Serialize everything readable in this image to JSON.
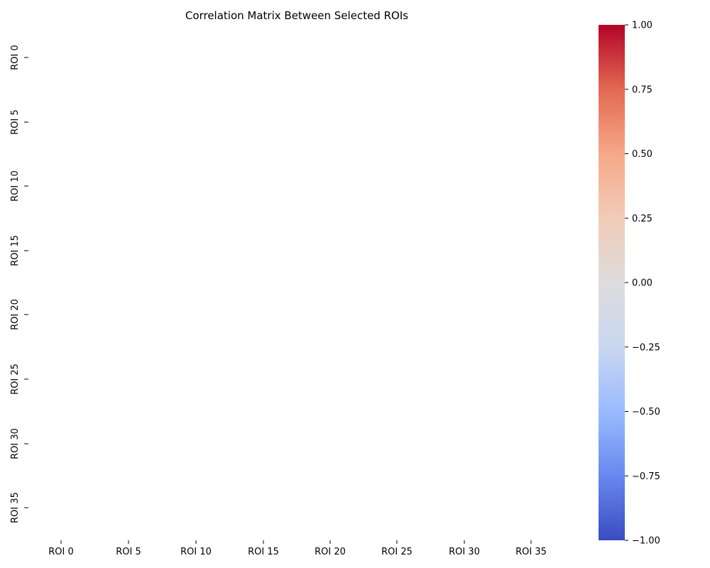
{
  "chart_data": {
    "type": "heatmap",
    "title": "Correlation Matrix Between Selected ROIs",
    "xlabel": "",
    "ylabel": "",
    "x_tick_labels": [
      "ROI 0",
      "ROI 5",
      "ROI 10",
      "ROI 15",
      "ROI 20",
      "ROI 25",
      "ROI 30",
      "ROI 35"
    ],
    "y_tick_labels": [
      "ROI 0",
      "ROI 5",
      "ROI 10",
      "ROI 15",
      "ROI 20",
      "ROI 25",
      "ROI 30",
      "ROI 35"
    ],
    "values": [],
    "colormap": "coolwarm",
    "colorbar": {
      "vmin": -1.0,
      "vmax": 1.0,
      "ticks": [
        -1.0,
        -0.75,
        -0.5,
        -0.25,
        0.0,
        0.25,
        0.5,
        0.75,
        1.0
      ],
      "tick_labels": [
        "−1.00",
        "−0.75",
        "−0.50",
        "−0.25",
        "0.00",
        "0.25",
        "0.50",
        "0.75",
        "1.00"
      ],
      "colors": [
        "#3b4cc0",
        "#6788ee",
        "#9abbff",
        "#c9d7f0",
        "#dddcdc",
        "#f2cbb7",
        "#f7a889",
        "#e26952",
        "#b40426"
      ]
    },
    "grid": false,
    "legend": "colorbar-right"
  }
}
